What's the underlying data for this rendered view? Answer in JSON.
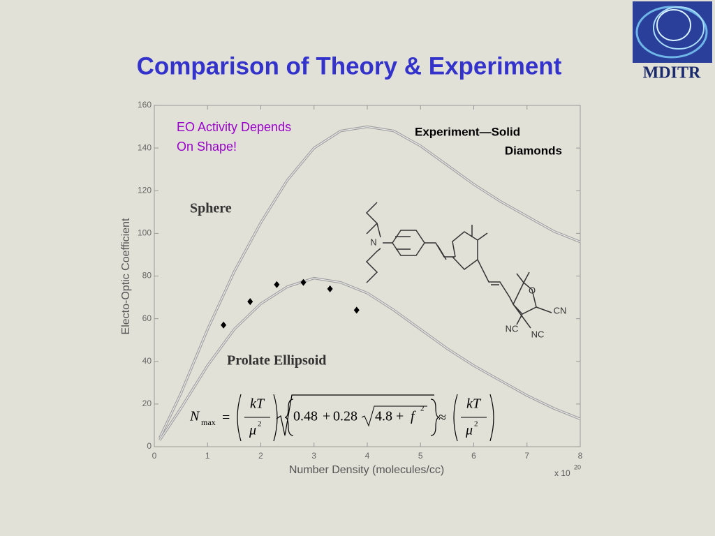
{
  "header": {
    "title": "Comparison of Theory & Experiment",
    "logo": "MDITR"
  },
  "chart_data": {
    "type": "line",
    "xlabel": "Number Density (molecules/cc)",
    "ylabel": "Electo-Optic Coefficient",
    "x_multiplier": "x 10",
    "x_multiplier_exponent": "20",
    "xlim": [
      0,
      8
    ],
    "xticks": [
      0,
      1,
      2,
      3,
      4,
      5,
      6,
      7,
      8
    ],
    "ylim": [
      0,
      160
    ],
    "yticks": [
      0,
      20,
      40,
      60,
      80,
      100,
      120,
      140,
      160
    ],
    "grid": false,
    "series": [
      {
        "name": "Sphere",
        "type": "line",
        "color": "#a0a0a0",
        "x": [
          0.1,
          0.5,
          1,
          1.5,
          2,
          2.5,
          3,
          3.5,
          4,
          4.5,
          5,
          5.5,
          6,
          6.5,
          7,
          7.5,
          8
        ],
        "values": [
          4,
          25,
          55,
          82,
          105,
          125,
          140,
          148,
          150,
          148,
          141,
          132,
          123,
          115,
          108,
          101,
          96
        ]
      },
      {
        "name": "Prolate Ellipsoid",
        "type": "line",
        "color": "#a0a0a0",
        "x": [
          0.1,
          0.5,
          1,
          1.5,
          2,
          2.5,
          3,
          3.5,
          4,
          4.5,
          5,
          5.5,
          6,
          6.5,
          7,
          7.5,
          8
        ],
        "values": [
          3,
          18,
          38,
          55,
          67,
          75,
          79,
          77,
          72,
          64,
          55,
          46,
          38,
          31,
          24,
          18,
          13
        ]
      },
      {
        "type": "scatter",
        "color": "#000000",
        "x": [
          1.3,
          1.8,
          2.3,
          2.8,
          3.3,
          3.8
        ],
        "values": [
          57,
          68,
          76,
          77,
          74,
          64
        ]
      }
    ],
    "annotations": {
      "eo_line1": "EO Activity Depends",
      "eo_line2": "On Shape!",
      "exp_line1": "Experiment—Solid",
      "exp_line2": "Diamonds"
    },
    "equation": {
      "lhs": "N",
      "lhs_sub": "max",
      "equals": "=",
      "numerator": "kT",
      "denominator": "μ",
      "power": "2",
      "c1": "0.48",
      "plus": "+",
      "c2": "0.28",
      "c3": "4.8",
      "f": "f",
      "approx": "≈"
    },
    "molecule": {
      "amine": "N",
      "oxygen": "O",
      "cyano1": "CN",
      "cyano2": "NC",
      "cyano3": "NC"
    }
  }
}
